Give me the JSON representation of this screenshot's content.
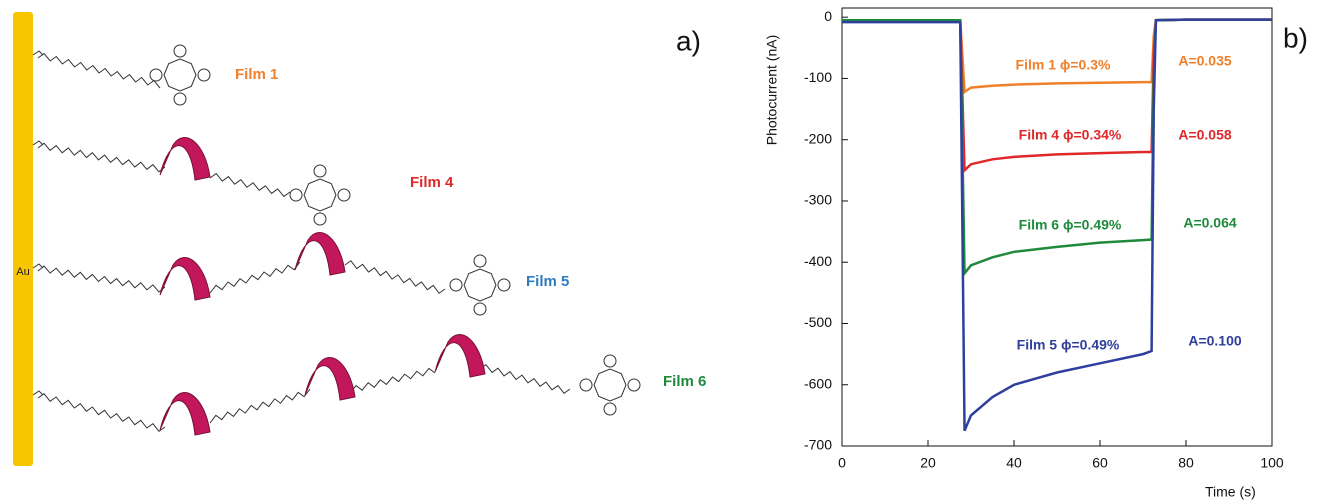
{
  "panel_a": {
    "panel_label": "a)",
    "electrode_label": "Au",
    "films": [
      {
        "label": "Film 1",
        "color": "#f07f2a"
      },
      {
        "label": "Film 4",
        "color": "#e0282a"
      },
      {
        "label": "Film 5",
        "color": "#2e7bbf"
      },
      {
        "label": "Film 6",
        "color": "#1f8a3c"
      }
    ]
  },
  "chart_data": {
    "type": "line",
    "panel_label": "b)",
    "x_label": "Time (s)",
    "y_label": "Photocurrent (nA)",
    "x": [
      0,
      27.5,
      28.5,
      30,
      35,
      40,
      50,
      60,
      70,
      72,
      72.5,
      73,
      80,
      90,
      100
    ],
    "series": [
      {
        "label": "Film 1 ϕ=0.3%",
        "absorbance_label": "A=0.035",
        "color": "#f07f2a",
        "values": [
          -5,
          -5,
          -122,
          -115,
          -112,
          -110,
          -108,
          -107,
          -106,
          -106,
          -30,
          -5,
          -4,
          -4,
          -4
        ]
      },
      {
        "label": "Film 4 ϕ=0.34%",
        "absorbance_label": "A=0.058",
        "color": "#e0282a",
        "values": [
          -5,
          -5,
          -250,
          -240,
          -232,
          -228,
          -224,
          -222,
          -220,
          -220,
          -60,
          -5,
          -4,
          -4,
          -4
        ]
      },
      {
        "label": "Film 6 ϕ=0.49%",
        "absorbance_label": "A=0.064",
        "color": "#1f8a3c",
        "values": [
          -5,
          -5,
          -418,
          -405,
          -392,
          -383,
          -375,
          -368,
          -364,
          -363,
          -100,
          -5,
          -4,
          -4,
          -4
        ]
      },
      {
        "label": "Film 5 ϕ=0.49%",
        "absorbance_label": "A=0.100",
        "color": "#2e3f9e",
        "values": [
          -8,
          -8,
          -675,
          -650,
          -620,
          -600,
          -580,
          -565,
          -550,
          -545,
          -150,
          -5,
          -4,
          -4,
          -4
        ]
      }
    ],
    "xlim": [
      0,
      100
    ],
    "ylim": [
      -700,
      15
    ],
    "xticks": [
      0,
      20,
      40,
      60,
      80,
      100
    ],
    "yticks": [
      0,
      -100,
      -200,
      -300,
      -400,
      -500,
      -600,
      -700
    ]
  }
}
